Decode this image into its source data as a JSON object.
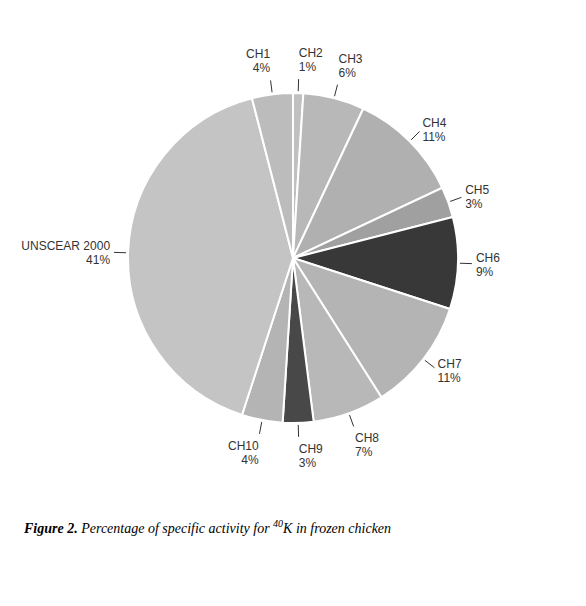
{
  "chart_data": {
    "type": "pie",
    "caption": {
      "bold": "Figure 2.",
      "text_before": "Percentage of specific activity for",
      "superscript": "40",
      "text_after": "K in frozen chicken"
    },
    "categories": [
      "CH2",
      "CH3",
      "CH4",
      "CH5",
      "CH6",
      "CH7",
      "CH8",
      "CH9",
      "CH10",
      "UNSCEAR 2000",
      "CH1"
    ],
    "values": [
      1,
      6,
      11,
      3,
      9,
      11,
      7,
      3,
      4,
      41,
      4
    ],
    "value_labels": [
      "1%",
      "6%",
      "11%",
      "3%",
      "9%",
      "11%",
      "7%",
      "3%",
      "4%",
      "41%",
      "4%"
    ],
    "colors": [
      "#c0c0c0",
      "#b8b8b8",
      "#b0b0b0",
      "#a0a0a0",
      "#383838",
      "#b4b4b4",
      "#b8b8b8",
      "#484848",
      "#b4b4b4",
      "#c4c4c4",
      "#bcbcbc"
    ],
    "data_labels": true
  }
}
